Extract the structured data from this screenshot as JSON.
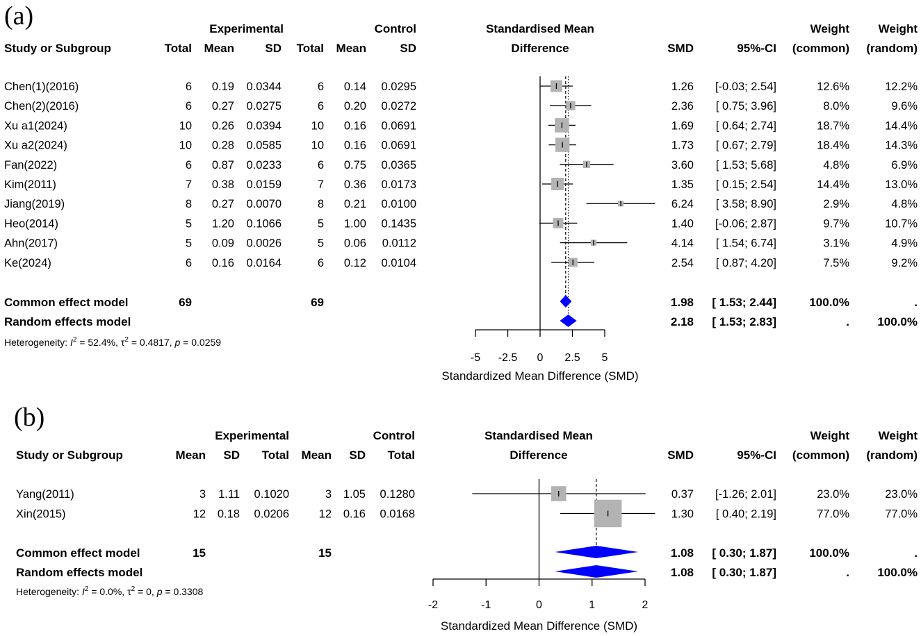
{
  "colors": {
    "box": "#b3b3b3",
    "diamond": "#0000ff",
    "line": "#000000"
  },
  "chart_data": [
    {
      "type": "forest",
      "panel_label": "(a)",
      "headers": {
        "study": "Study or Subgroup",
        "experimental": "Experimental",
        "control": "Control",
        "total": "Total",
        "mean": "Mean",
        "sd": "SD",
        "effect_line1": "Standardised Mean",
        "effect_line2": "Difference",
        "smd": "SMD",
        "ci": "95%-CI",
        "weight": "Weight",
        "common": "(common)",
        "random": "(random)"
      },
      "studies": [
        {
          "name": "Chen(1)(2016)",
          "e_total": "6",
          "e_mean": "0.19",
          "e_sd": "0.0344",
          "c_total": "6",
          "c_mean": "0.14",
          "c_sd": "0.0295",
          "smd_text": "1.26",
          "ci_text": "[-0.03; 2.54]",
          "w_common": "12.6%",
          "w_random": "12.2%",
          "smd": 1.26,
          "lo": -0.03,
          "hi": 2.54,
          "wc": 12.6
        },
        {
          "name": "Chen(2)(2016)",
          "e_total": "6",
          "e_mean": "0.27",
          "e_sd": "0.0275",
          "c_total": "6",
          "c_mean": "0.20",
          "c_sd": "0.0272",
          "smd_text": "2.36",
          "ci_text": "[ 0.75; 3.96]",
          "w_common": "8.0%",
          "w_random": "9.6%",
          "smd": 2.36,
          "lo": 0.75,
          "hi": 3.96,
          "wc": 8.0
        },
        {
          "name": "Xu a1(2024)",
          "e_total": "10",
          "e_mean": "0.26",
          "e_sd": "0.0394",
          "c_total": "10",
          "c_mean": "0.16",
          "c_sd": "0.0691",
          "smd_text": "1.69",
          "ci_text": "[ 0.64; 2.74]",
          "w_common": "18.7%",
          "w_random": "14.4%",
          "smd": 1.69,
          "lo": 0.64,
          "hi": 2.74,
          "wc": 18.7
        },
        {
          "name": "Xu a2(2024)",
          "e_total": "10",
          "e_mean": "0.28",
          "e_sd": "0.0585",
          "c_total": "10",
          "c_mean": "0.16",
          "c_sd": "0.0691",
          "smd_text": "1.73",
          "ci_text": "[ 0.67; 2.79]",
          "w_common": "18.4%",
          "w_random": "14.3%",
          "smd": 1.73,
          "lo": 0.67,
          "hi": 2.79,
          "wc": 18.4
        },
        {
          "name": "Fan(2022)",
          "e_total": "6",
          "e_mean": "0.87",
          "e_sd": "0.0233",
          "c_total": "6",
          "c_mean": "0.75",
          "c_sd": "0.0365",
          "smd_text": "3.60",
          "ci_text": "[ 1.53; 5.68]",
          "w_common": "4.8%",
          "w_random": "6.9%",
          "smd": 3.6,
          "lo": 1.53,
          "hi": 5.68,
          "wc": 4.8
        },
        {
          "name": "Kim(2011)",
          "e_total": "7",
          "e_mean": "0.38",
          "e_sd": "0.0159",
          "c_total": "7",
          "c_mean": "0.36",
          "c_sd": "0.0173",
          "smd_text": "1.35",
          "ci_text": "[ 0.15; 2.54]",
          "w_common": "14.4%",
          "w_random": "13.0%",
          "smd": 1.35,
          "lo": 0.15,
          "hi": 2.54,
          "wc": 14.4
        },
        {
          "name": "Jiang(2019)",
          "e_total": "8",
          "e_mean": "0.27",
          "e_sd": "0.0070",
          "c_total": "8",
          "c_mean": "0.21",
          "c_sd": "0.0100",
          "smd_text": "6.24",
          "ci_text": "[ 3.58; 8.90]",
          "w_common": "2.9%",
          "w_random": "4.8%",
          "smd": 6.24,
          "lo": 3.58,
          "hi": 8.9,
          "wc": 2.9
        },
        {
          "name": "Heo(2014)",
          "e_total": "5",
          "e_mean": "1.20",
          "e_sd": "0.1066",
          "c_total": "5",
          "c_mean": "1.00",
          "c_sd": "0.1435",
          "smd_text": "1.40",
          "ci_text": "[-0.06; 2.87]",
          "w_common": "9.7%",
          "w_random": "10.7%",
          "smd": 1.4,
          "lo": -0.06,
          "hi": 2.87,
          "wc": 9.7
        },
        {
          "name": "Ahn(2017)",
          "e_total": "5",
          "e_mean": "0.09",
          "e_sd": "0.0026",
          "c_total": "5",
          "c_mean": "0.06",
          "c_sd": "0.0112",
          "smd_text": "4.14",
          "ci_text": "[ 1.54; 6.74]",
          "w_common": "3.1%",
          "w_random": "4.9%",
          "smd": 4.14,
          "lo": 1.54,
          "hi": 6.74,
          "wc": 3.1
        },
        {
          "name": "Ke(2024)",
          "e_total": "6",
          "e_mean": "0.16",
          "e_sd": "0.0164",
          "c_total": "6",
          "c_mean": "0.12",
          "c_sd": "0.0104",
          "smd_text": "2.54",
          "ci_text": "[ 0.87; 4.20]",
          "w_common": "7.5%",
          "w_random": "9.2%",
          "smd": 2.54,
          "lo": 0.87,
          "hi": 4.2,
          "wc": 7.5
        }
      ],
      "summary": [
        {
          "name": "Common effect model",
          "e_total": "69",
          "c_total": "69",
          "smd_text": "1.98",
          "ci_text": "[ 1.53; 2.44]",
          "w_common": "100.0%",
          "w_random": ".",
          "smd": 1.98,
          "lo": 1.53,
          "hi": 2.44
        },
        {
          "name": "Random effects model",
          "e_total": "",
          "c_total": "",
          "smd_text": "2.18",
          "ci_text": "[ 1.53; 2.83]",
          "w_common": ".",
          "w_random": "100.0%",
          "smd": 2.18,
          "lo": 1.53,
          "hi": 2.83
        }
      ],
      "heterogeneity": {
        "prefix": "Heterogeneity: ",
        "i2_sym": "I",
        "i2_text": " = 52.4%, ",
        "tau_sym": "τ",
        "tau_text": " = 0.4817, ",
        "p_sym": "p",
        "p_text": " = 0.0259"
      },
      "axis": {
        "min": -5,
        "max": 5,
        "ticks": [
          -5,
          -2.5,
          0,
          2.5,
          5
        ],
        "tick_labels": [
          "-5",
          "-2.5",
          "0",
          "2.5",
          "5"
        ],
        "title": "Standardized Mean Difference (SMD)"
      }
    },
    {
      "type": "forest",
      "panel_label": "(b)",
      "headers": {
        "study": "Study or Subgroup",
        "experimental": "Experimental",
        "control": "Control",
        "total": "Total",
        "mean": "Mean",
        "sd": "SD",
        "effect_line1": "Standardised Mean",
        "effect_line2": "Difference",
        "smd": "SMD",
        "ci": "95%-CI",
        "weight": "Weight",
        "common": "(common)",
        "random": "(random)"
      },
      "studies": [
        {
          "name": "Yang(2011)",
          "e_mean": "3",
          "e_sd": "1.11",
          "e_total": "0.1020",
          "c_mean": "3",
          "c_sd": "1.05",
          "c_total": "0.1280",
          "smd_text": "0.37",
          "ci_text": "[-1.26; 2.01]",
          "w_common": "23.0%",
          "w_random": "23.0%",
          "smd": 0.37,
          "lo": -1.26,
          "hi": 2.01,
          "wc": 23.0
        },
        {
          "name": "Xin(2015)",
          "e_mean": "12",
          "e_sd": "0.18",
          "e_total": "0.0206",
          "c_mean": "12",
          "c_sd": "0.16",
          "c_total": "0.0168",
          "smd_text": "1.30",
          "ci_text": "[ 0.40; 2.19]",
          "w_common": "77.0%",
          "w_random": "77.0%",
          "smd": 1.3,
          "lo": 0.4,
          "hi": 2.19,
          "wc": 77.0
        }
      ],
      "summary": [
        {
          "name": "Common effect model",
          "e_mean": "15",
          "c_mean": "15",
          "smd_text": "1.08",
          "ci_text": "[ 0.30; 1.87]",
          "w_common": "100.0%",
          "w_random": ".",
          "smd": 1.08,
          "lo": 0.3,
          "hi": 1.87
        },
        {
          "name": "Random effects model",
          "e_mean": "",
          "c_mean": "",
          "smd_text": "1.08",
          "ci_text": "[ 0.30; 1.87]",
          "w_common": ".",
          "w_random": "100.0%",
          "smd": 1.08,
          "lo": 0.3,
          "hi": 1.87
        }
      ],
      "heterogeneity": {
        "prefix": "Heterogeneity: ",
        "i2_sym": "I",
        "i2_text": " = 0.0%, ",
        "tau_sym": "τ",
        "tau_text": " = 0, ",
        "p_sym": "p",
        "p_text": " = 0.3308"
      },
      "axis": {
        "min": -2,
        "max": 2,
        "ticks": [
          -2,
          -1,
          0,
          1,
          2
        ],
        "tick_labels": [
          "-2",
          "-1",
          "0",
          "1",
          "2"
        ],
        "title": "Standardized Mean Difference (SMD)"
      }
    }
  ]
}
